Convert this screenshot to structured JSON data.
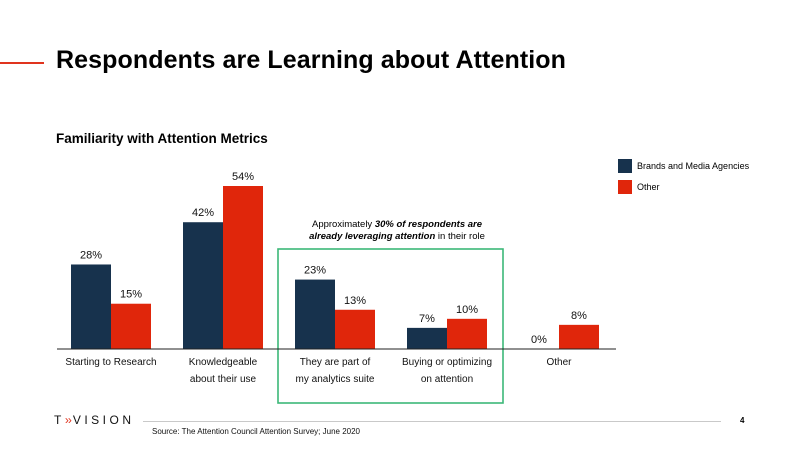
{
  "slide": {
    "title": "Respondents are Learning about Attention",
    "subtitle": "Familiarity with Attention Metrics",
    "brand": {
      "prefix": "T",
      "chevrons": "››",
      "suffix": "VISION"
    },
    "source": "Source: The Attention Council Attention Survey; June 2020",
    "page_number": "4",
    "annotation": {
      "part1": "Approximately ",
      "part2": "30% of respondents are",
      "part3": "already leveraging attention",
      "part4": " in their role"
    }
  },
  "colors": {
    "series1": "#17324d",
    "series2": "#e0260b",
    "highlight_box": "#3cb878",
    "accent_line": "#e0341e"
  },
  "chart_data": {
    "type": "bar",
    "categories": [
      [
        "Starting to Research"
      ],
      [
        "Knowledgeable",
        "about their use"
      ],
      [
        "They are part of",
        "my analytics suite"
      ],
      [
        "Buying or optimizing",
        "on attention"
      ],
      [
        "Other"
      ]
    ],
    "series": [
      {
        "name": "Brands and Media Agencies",
        "values": [
          28,
          42,
          23,
          7,
          0
        ],
        "labels": [
          "28%",
          "42%",
          "23%",
          "7%",
          "0%"
        ]
      },
      {
        "name": "Other",
        "values": [
          15,
          54,
          13,
          10,
          8
        ],
        "labels": [
          "15%",
          "54%",
          "13%",
          "10%",
          "8%"
        ]
      }
    ],
    "ylim": [
      0,
      54
    ],
    "grid": false,
    "legend": "top-right",
    "highlight_categories": [
      2,
      3
    ]
  }
}
